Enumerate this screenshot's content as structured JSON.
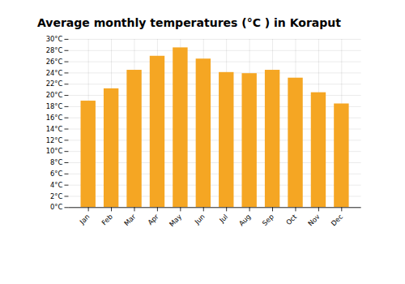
{
  "chart_data": {
    "type": "bar",
    "title": "Average monthly temperatures (°C ) in Koraput",
    "categories": [
      "Jan",
      "Feb",
      "Mar",
      "Apr",
      "May",
      "Jun",
      "Jul",
      "Aug",
      "Sep",
      "Oct",
      "Nov",
      "Dec"
    ],
    "values": [
      19.0,
      21.2,
      24.5,
      27.0,
      28.5,
      26.5,
      24.1,
      23.9,
      24.5,
      23.1,
      20.5,
      18.5
    ],
    "color": "#F5A623",
    "ylim": [
      0,
      30
    ],
    "yticks": [
      {
        "value": 0,
        "label": "0°C"
      },
      {
        "value": 2,
        "label": "2°C"
      },
      {
        "value": 4,
        "label": "4°C"
      },
      {
        "value": 6,
        "label": "6°C"
      },
      {
        "value": 8,
        "label": "8°C"
      },
      {
        "value": 10,
        "label": "10°C"
      },
      {
        "value": 12,
        "label": "12°C"
      },
      {
        "value": 14,
        "label": "14°C"
      },
      {
        "value": 16,
        "label": "16°C"
      },
      {
        "value": 18,
        "label": "18°C"
      },
      {
        "value": 20,
        "label": "20°C"
      },
      {
        "value": 22,
        "label": "22°C"
      },
      {
        "value": 24,
        "label": "24°C"
      },
      {
        "value": 26,
        "label": "26°C"
      },
      {
        "value": 28,
        "label": "28°C"
      },
      {
        "value": 30,
        "label": "30°C"
      }
    ],
    "grid": true
  }
}
